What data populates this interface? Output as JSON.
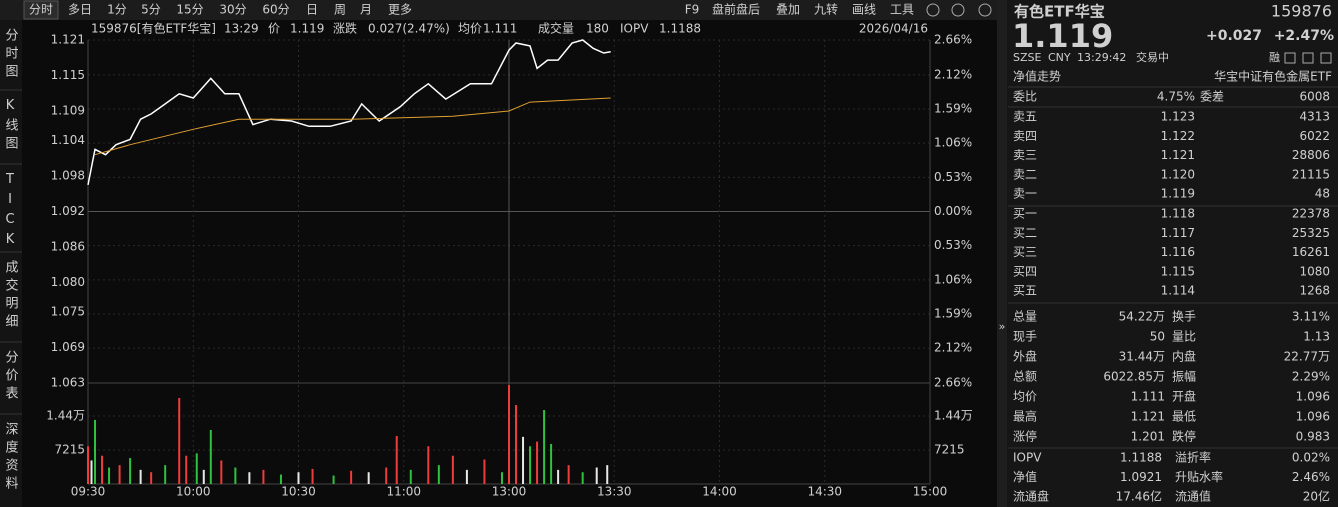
{
  "toolbar": {
    "tabs": [
      "分时",
      "多日",
      "1分",
      "5分",
      "15分",
      "30分",
      "60分",
      "日",
      "周",
      "月",
      "更多"
    ],
    "tools": [
      "F9",
      "盘前盘后",
      "叠加",
      "九转",
      "画线",
      "工具"
    ]
  },
  "left_tabs": [
    "分时图",
    "K线图",
    "TICK",
    "成交明细",
    "分价表",
    "深度资料"
  ],
  "chart_header": {
    "symbol": "159876[有色ETF华宝]",
    "time": "13:29",
    "price_label": "价",
    "price": "1.119",
    "change_label": "涨跌",
    "change": "0.027(2.47%)",
    "avg_label": "均价",
    "avg": "1.111",
    "volume_label": "成交量",
    "volume": "180",
    "iopv_label": "IOPV",
    "iopv": "1.1188",
    "date": "2026/04/16"
  },
  "chart_data": [
    {
      "type": "line",
      "up_color": "#f23b3b",
      "down_color": "#2fc23f",
      "flat_color": "#d8d8d8",
      "xlim": [
        0,
        240
      ],
      "xticks": [
        {
          "value": 0,
          "label": "09:30"
        },
        {
          "value": 30,
          "label": "10:00"
        },
        {
          "value": 60,
          "label": "10:30"
        },
        {
          "value": 90,
          "label": "11:00"
        },
        {
          "value": 120,
          "label": "13:00"
        },
        {
          "value": 150,
          "label": "13:30"
        },
        {
          "value": 180,
          "label": "14:00"
        },
        {
          "value": 210,
          "label": "14:30"
        },
        {
          "value": 240,
          "label": "15:00"
        }
      ],
      "ylim": [
        1.063,
        1.121
      ],
      "yticks": [
        1.063,
        1.069,
        1.075,
        {
          "value": 1.08,
          "label": "1.080"
        },
        1.086,
        1.092,
        1.098,
        1.104,
        1.109,
        1.115,
        1.121
      ],
      "y2lim": [
        -2.66,
        2.66
      ],
      "y2ticks": [
        {
          "value": -2.66,
          "label": "2.66%"
        },
        {
          "value": -2.12,
          "label": "2.12%"
        },
        {
          "value": -1.59,
          "label": "1.59%"
        },
        {
          "value": -1.06,
          "label": "1.06%"
        },
        {
          "value": -0.53,
          "label": "0.53%"
        },
        {
          "value": 0,
          "label": "0.00%"
        },
        {
          "value": 0.53,
          "label": "0.53%"
        },
        {
          "value": 1.06,
          "label": "1.06%"
        },
        {
          "value": 1.59,
          "label": "1.59%"
        },
        {
          "value": 2.12,
          "label": "2.12%"
        },
        {
          "value": 2.66,
          "label": "2.66%"
        }
      ],
      "series": [
        {
          "color": "#ffffff",
          "x": [
            0,
            2,
            5,
            8,
            12,
            15,
            18,
            22,
            26,
            30,
            35,
            39,
            43,
            47,
            52,
            58,
            63,
            69,
            75,
            78,
            83,
            89,
            93,
            97,
            102,
            109,
            115,
            120,
            122,
            126,
            128,
            131,
            134,
            138,
            141,
            144,
            147,
            149
          ],
          "values": [
            1.0965,
            1.1025,
            1.1016,
            1.1033,
            1.1042,
            1.1076,
            1.1085,
            1.1102,
            1.1119,
            1.1112,
            1.1145,
            1.1119,
            1.1119,
            1.1067,
            1.1076,
            1.1073,
            1.1064,
            1.1064,
            1.1073,
            1.1102,
            1.1073,
            1.1097,
            1.1119,
            1.1136,
            1.111,
            1.1136,
            1.1136,
            1.1193,
            1.1205,
            1.12,
            1.1162,
            1.1176,
            1.1176,
            1.1205,
            1.121,
            1.1196,
            1.1188,
            1.119
          ]
        },
        {
          "color": "#e0a030",
          "x": [
            2,
            12,
            30,
            43,
            75,
            104,
            120,
            126,
            149
          ],
          "values": [
            1.1016,
            1.1033,
            1.1059,
            1.1076,
            1.1076,
            1.1081,
            1.109,
            1.1105,
            1.1112
          ]
        }
      ]
    },
    {
      "type": "bar",
      "ylim": [
        0,
        21430
      ],
      "yticks": [
        7215,
        {
          "value": 14430,
          "label": "1.44万"
        }
      ],
      "x": [
        0,
        1,
        2,
        4,
        6,
        9,
        12,
        15,
        18,
        22,
        26,
        28,
        31,
        33,
        35,
        38,
        42,
        46,
        50,
        55,
        60,
        64,
        70,
        75,
        80,
        85,
        88,
        92,
        97,
        100,
        104,
        108,
        113,
        118,
        120,
        122,
        124,
        126,
        128,
        130,
        132,
        134,
        137,
        141,
        145,
        148
      ],
      "values": [
        8000,
        5000,
        13600,
        6000,
        3500,
        4000,
        5500,
        3000,
        2500,
        4000,
        18250,
        6000,
        6500,
        3000,
        11460,
        5000,
        3500,
        2500,
        3000,
        2000,
        2500,
        3200,
        1800,
        2800,
        2500,
        3500,
        10200,
        3000,
        8000,
        4000,
        6000,
        3000,
        5200,
        2500,
        21000,
        16760,
        10000,
        8000,
        9000,
        15700,
        8500,
        3000,
        4000,
        2500,
        3500,
        4000
      ],
      "colors": [
        "#f23b3b",
        "#e8e8e8",
        "#2fc23f",
        "#f23b3b",
        "#2fc23f",
        "#f23b3b",
        "#2fc23f",
        "#e8e8e8",
        "#f23b3b",
        "#2fc23f",
        "#f23b3b",
        "#f23b3b",
        "#2fc23f",
        "#e8e8e8",
        "#2fc23f",
        "#f23b3b",
        "#2fc23f",
        "#e8e8e8",
        "#f23b3b",
        "#2fc23f",
        "#e8e8e8",
        "#f23b3b",
        "#2fc23f",
        "#f23b3b",
        "#e8e8e8",
        "#f23b3b",
        "#f23b3b",
        "#2fc23f",
        "#f23b3b",
        "#2fc23f",
        "#f23b3b",
        "#e8e8e8",
        "#f23b3b",
        "#2fc23f",
        "#f23b3b",
        "#f23b3b",
        "#e8e8e8",
        "#2fc23f",
        "#f23b3b",
        "#2fc23f",
        "#2fc23f",
        "#e8e8e8",
        "#f23b3b",
        "#2fc23f",
        "#e8e8e8",
        "#e8e8e8"
      ]
    }
  ],
  "quote": {
    "name": "有色ETF华宝",
    "code": "159876",
    "price": "1.119",
    "change": "+0.027",
    "change_pct": "+2.47%",
    "exchange": "SZSE",
    "currency": "CNY",
    "time": "13:29:42",
    "status": "交易中",
    "tag": "融"
  },
  "nav_tab": "净值走势",
  "index_name": "华宝中证有色金属ETF",
  "order_ratio": [
    "委比",
    "4.75%",
    "委差",
    "6008"
  ],
  "asks": [
    [
      "卖五",
      "1.123",
      "4313"
    ],
    [
      "卖四",
      "1.122",
      "6022"
    ],
    [
      "卖三",
      "1.121",
      "28806"
    ],
    [
      "卖二",
      "1.120",
      "21115"
    ],
    [
      "卖一",
      "1.119",
      "48"
    ]
  ],
  "bids": [
    [
      "买一",
      "1.118",
      "22378"
    ],
    [
      "买二",
      "1.117",
      "25325"
    ],
    [
      "买三",
      "1.116",
      "16261"
    ],
    [
      "买四",
      "1.115",
      "1080"
    ],
    [
      "买五",
      "1.114",
      "1268"
    ]
  ],
  "stats": [
    [
      "总量",
      "54.22万",
      "换手",
      "3.11%"
    ],
    [
      "现手",
      "50",
      "量比",
      "1.13"
    ],
    [
      "外盘",
      "31.44万",
      "内盘",
      "22.77万"
    ],
    [
      "总额",
      "6022.85万",
      "振幅",
      "2.29%"
    ],
    [
      "均价",
      "1.111",
      "开盘",
      "1.096"
    ],
    [
      "最高",
      "1.121",
      "最低",
      "1.096"
    ],
    [
      "涨停",
      "1.201",
      "跌停",
      "0.983"
    ]
  ],
  "stat_colors": [
    [
      "#e0e0e0",
      "#e0e0e0"
    ],
    [
      "#e0e0e0",
      "#e0e0e0"
    ],
    [
      "#f23b3b",
      "#2fc23f"
    ],
    [
      "#e0e0e0",
      "#e0e0e0"
    ],
    [
      "#f23b3b",
      "#f23b3b"
    ],
    [
      "#f23b3b",
      "#f23b3b"
    ],
    [
      "#f23b3b",
      "#2fc23f"
    ]
  ],
  "fund_stats": [
    [
      "IOPV",
      "1.1188",
      "溢折率",
      "0.02%"
    ],
    [
      "净值",
      "1.0921",
      "升贴水率",
      "2.46%"
    ],
    [
      "流通盘",
      "17.46亿",
      "流通值",
      "20亿"
    ]
  ],
  "fund_colors": [
    [
      "#e0e0e0",
      "#f23b3b"
    ],
    [
      "#2fc23f",
      "#f23b3b"
    ],
    [
      "#e0e0e0",
      "#e0e0e0"
    ]
  ]
}
